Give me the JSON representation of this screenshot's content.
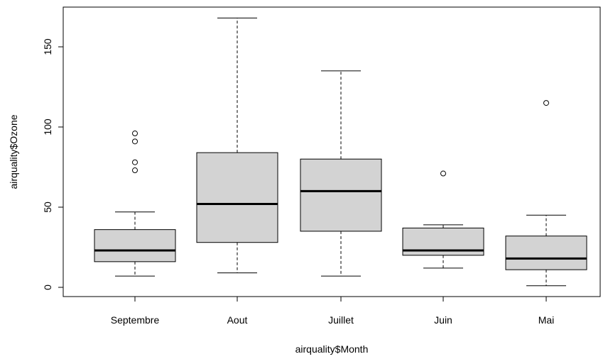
{
  "chart_data": {
    "type": "boxplot",
    "xlabel": "airquality$Month",
    "ylabel": "airquality$Ozone",
    "ylim": [
      -5,
      175
    ],
    "yticks": [
      0,
      50,
      100,
      150
    ],
    "grid": false,
    "legend": "none",
    "box_fill": "#d3d3d3",
    "categories": [
      "Septembre",
      "Aout",
      "Juillet",
      "Juin",
      "Mai"
    ],
    "boxes": [
      {
        "label": "Septembre",
        "min": 7,
        "q1": 16,
        "median": 23,
        "q3": 36,
        "max": 47,
        "outliers": [
          73,
          78,
          91,
          96
        ]
      },
      {
        "label": "Aout",
        "min": 9,
        "q1": 28,
        "median": 52,
        "q3": 84,
        "max": 168,
        "outliers": []
      },
      {
        "label": "Juillet",
        "min": 7,
        "q1": 35,
        "median": 60,
        "q3": 80,
        "max": 135,
        "outliers": []
      },
      {
        "label": "Juin",
        "min": 12,
        "q1": 20,
        "median": 23,
        "q3": 37,
        "max": 39,
        "outliers": [
          71
        ]
      },
      {
        "label": "Mai",
        "min": 1,
        "q1": 11,
        "median": 18,
        "q3": 32,
        "max": 45,
        "outliers": [
          115
        ]
      }
    ]
  }
}
